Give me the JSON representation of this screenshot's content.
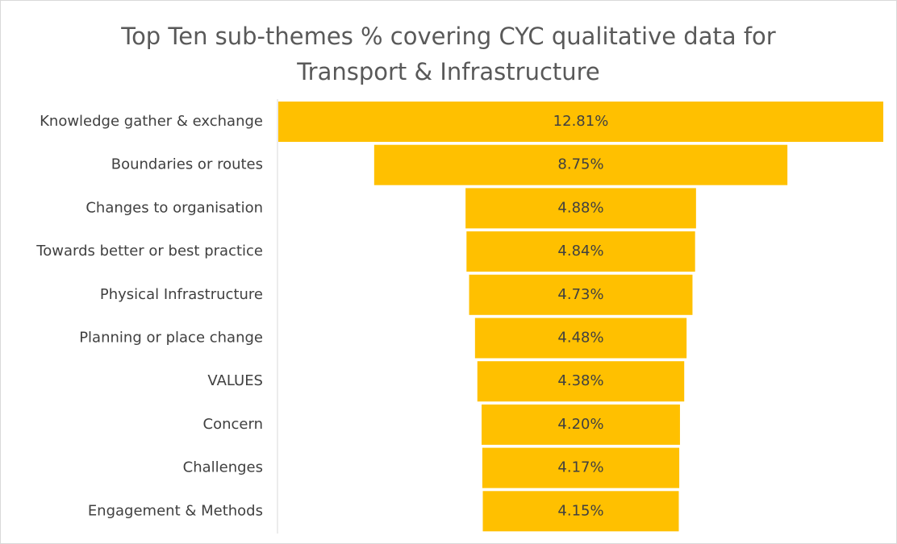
{
  "chart_data": {
    "type": "funnel",
    "title": "Top Ten sub-themes % covering CYC qualitative data for Transport & Infrastructure",
    "categories": [
      "Knowledge gather & exchange",
      "Boundaries or routes",
      "Changes to organisation",
      "Towards better or best practice",
      "Physical Infrastructure",
      "Planning or place change",
      "VALUES",
      "Concern",
      "Challenges",
      "Engagement & Methods"
    ],
    "values": [
      12.81,
      8.75,
      4.88,
      4.84,
      4.73,
      4.48,
      4.38,
      4.2,
      4.17,
      4.15
    ],
    "value_labels": [
      "12.81%",
      "8.75%",
      "4.88%",
      "4.84%",
      "4.73%",
      "4.48%",
      "4.38%",
      "4.20%",
      "4.17%",
      "4.15%"
    ],
    "color": "#ffc000"
  }
}
